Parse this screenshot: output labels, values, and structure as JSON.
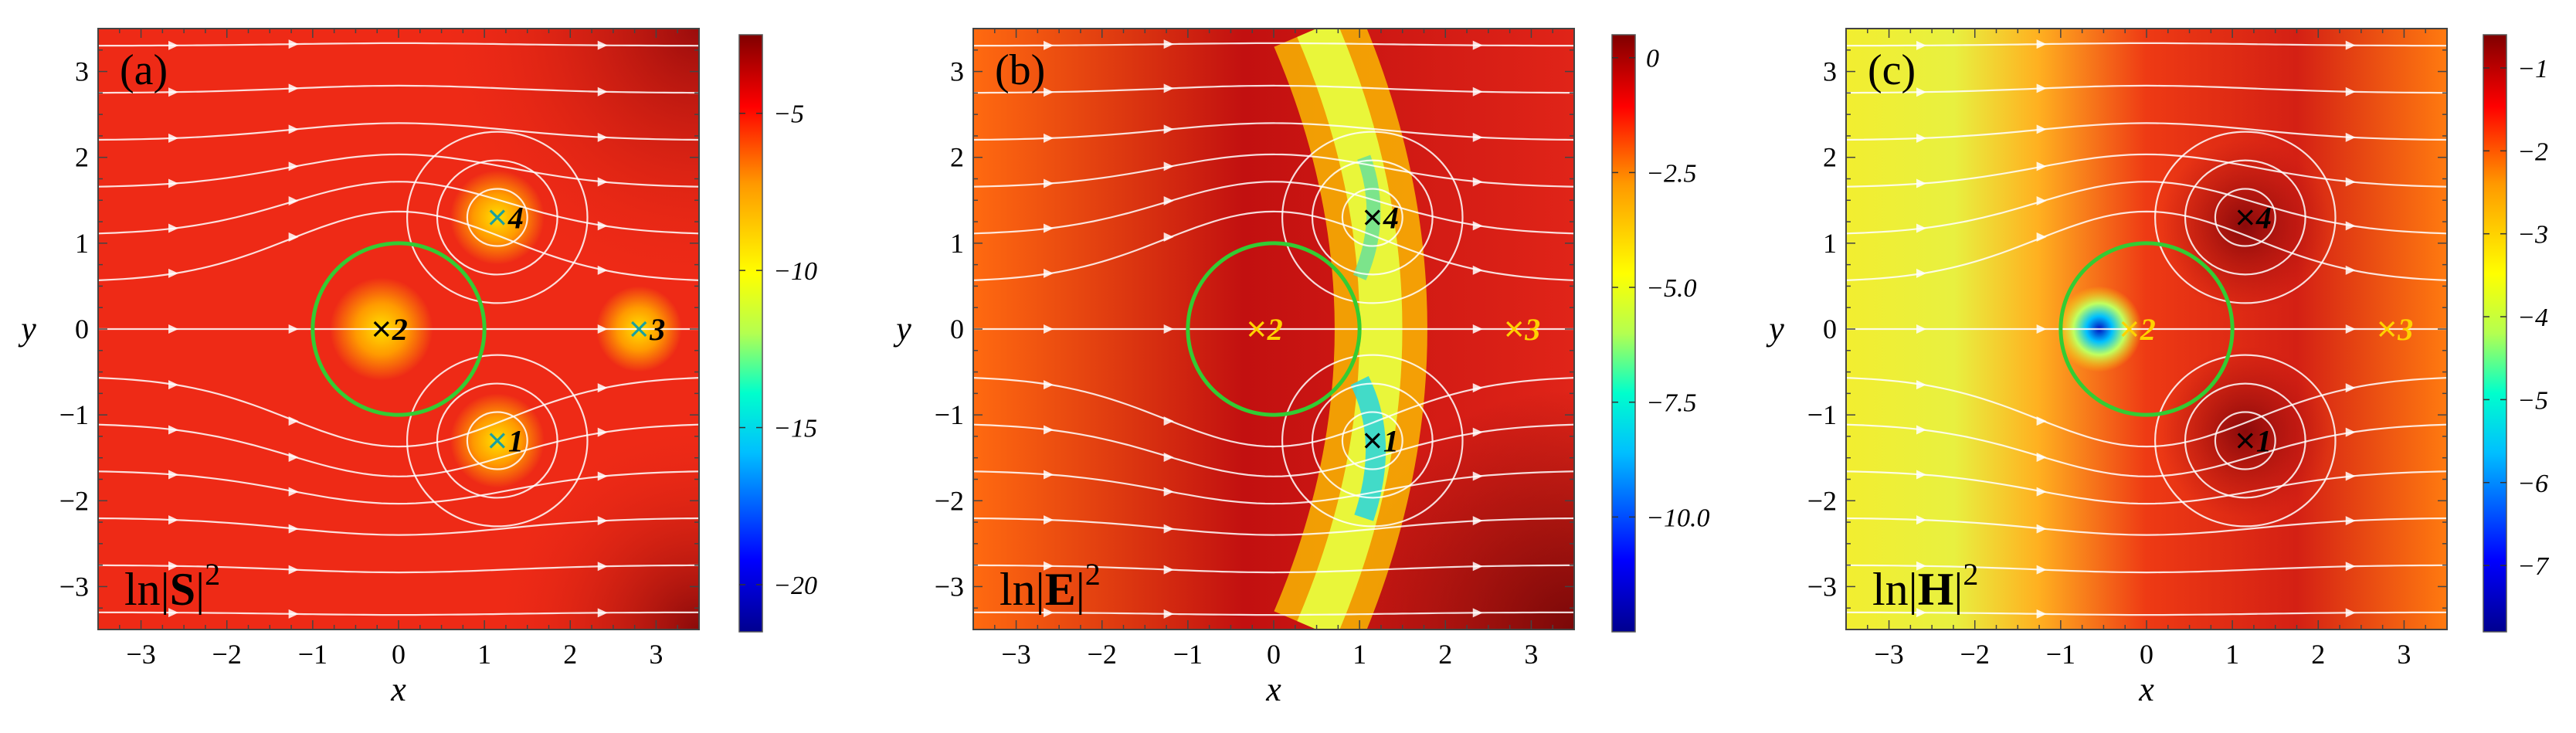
{
  "chart_data": [
    {
      "type": "heatmap",
      "panel_label": "(a)",
      "field_label": "ln|S|",
      "field_exponent": "2",
      "xlabel": "x",
      "ylabel": "y",
      "xlim": [
        -3.5,
        3.5
      ],
      "ylim": [
        -3.5,
        3.5
      ],
      "x_ticks": [
        -3,
        -2,
        -1,
        0,
        1,
        2,
        3
      ],
      "y_ticks": [
        -3,
        -2,
        -1,
        0,
        1,
        2,
        3
      ],
      "colorbar": {
        "range": [
          -21.5,
          -2.5
        ],
        "ticks": [
          -5,
          -10,
          -15,
          -20
        ],
        "tick_labels": [
          "−5",
          "−10",
          "−15",
          "−20"
        ]
      },
      "circle": {
        "center": [
          0,
          0
        ],
        "radius": 1,
        "color": "#33cc33"
      },
      "points": [
        {
          "label": "1",
          "x": 1.15,
          "y": -1.3,
          "color": "#19a0a0",
          "label_color": "#000000"
        },
        {
          "label": "2",
          "x": -0.2,
          "y": 0,
          "color": "#000000",
          "label_color": "#000000"
        },
        {
          "label": "3",
          "x": 2.8,
          "y": 0,
          "color": "#19a0a0",
          "label_color": "#000000"
        },
        {
          "label": "4",
          "x": 1.15,
          "y": 1.3,
          "color": "#19a0a0",
          "label_color": "#000000"
        }
      ]
    },
    {
      "type": "heatmap",
      "panel_label": "(b)",
      "field_label": "ln|E|",
      "field_exponent": "2",
      "xlabel": "x",
      "ylabel": "y",
      "xlim": [
        -3.5,
        3.5
      ],
      "ylim": [
        -3.5,
        3.5
      ],
      "x_ticks": [
        -3,
        -2,
        -1,
        0,
        1,
        2,
        3
      ],
      "y_ticks": [
        -3,
        -2,
        -1,
        0,
        1,
        2,
        3
      ],
      "colorbar": {
        "range": [
          -12.5,
          0.5
        ],
        "ticks": [
          0,
          -2.5,
          -5.0,
          -7.5,
          -10.0
        ],
        "tick_labels": [
          "0",
          "−2.5",
          "−5.0",
          "−7.5",
          "−10.0"
        ]
      },
      "circle": {
        "center": [
          0,
          0
        ],
        "radius": 1,
        "color": "#33cc33"
      },
      "points": [
        {
          "label": "1",
          "x": 1.15,
          "y": -1.3,
          "color": "#000000",
          "label_color": "#000000"
        },
        {
          "label": "2",
          "x": -0.2,
          "y": 0,
          "color": "#ffd200",
          "label_color": "#ffd200"
        },
        {
          "label": "3",
          "x": 2.8,
          "y": 0,
          "color": "#ffd200",
          "label_color": "#ffd200"
        },
        {
          "label": "4",
          "x": 1.15,
          "y": 1.3,
          "color": "#000000",
          "label_color": "#000000"
        }
      ]
    },
    {
      "type": "heatmap",
      "panel_label": "(c)",
      "field_label": "ln|H|",
      "field_exponent": "2",
      "xlabel": "x",
      "ylabel": "y",
      "xlim": [
        -3.5,
        3.5
      ],
      "ylim": [
        -3.5,
        3.5
      ],
      "x_ticks": [
        -3,
        -2,
        -1,
        0,
        1,
        2,
        3
      ],
      "y_ticks": [
        -3,
        -2,
        -1,
        0,
        1,
        2,
        3
      ],
      "colorbar": {
        "range": [
          -7.8,
          -0.6
        ],
        "ticks": [
          -1,
          -2,
          -3,
          -4,
          -5,
          -6,
          -7
        ],
        "tick_labels": [
          "−1",
          "−2",
          "−3",
          "−4",
          "−5",
          "−6",
          "−7"
        ]
      },
      "circle": {
        "center": [
          0,
          0
        ],
        "radius": 1,
        "color": "#33cc33"
      },
      "points": [
        {
          "label": "1",
          "x": 1.15,
          "y": -1.3,
          "color": "#000000",
          "label_color": "#000000"
        },
        {
          "label": "2",
          "x": -0.2,
          "y": 0,
          "color": "#ffd200",
          "label_color": "#ffd200"
        },
        {
          "label": "3",
          "x": 2.8,
          "y": 0,
          "color": "#ffd200",
          "label_color": "#ffd200"
        },
        {
          "label": "4",
          "x": 1.15,
          "y": 1.3,
          "color": "#000000",
          "label_color": "#000000"
        }
      ]
    }
  ]
}
